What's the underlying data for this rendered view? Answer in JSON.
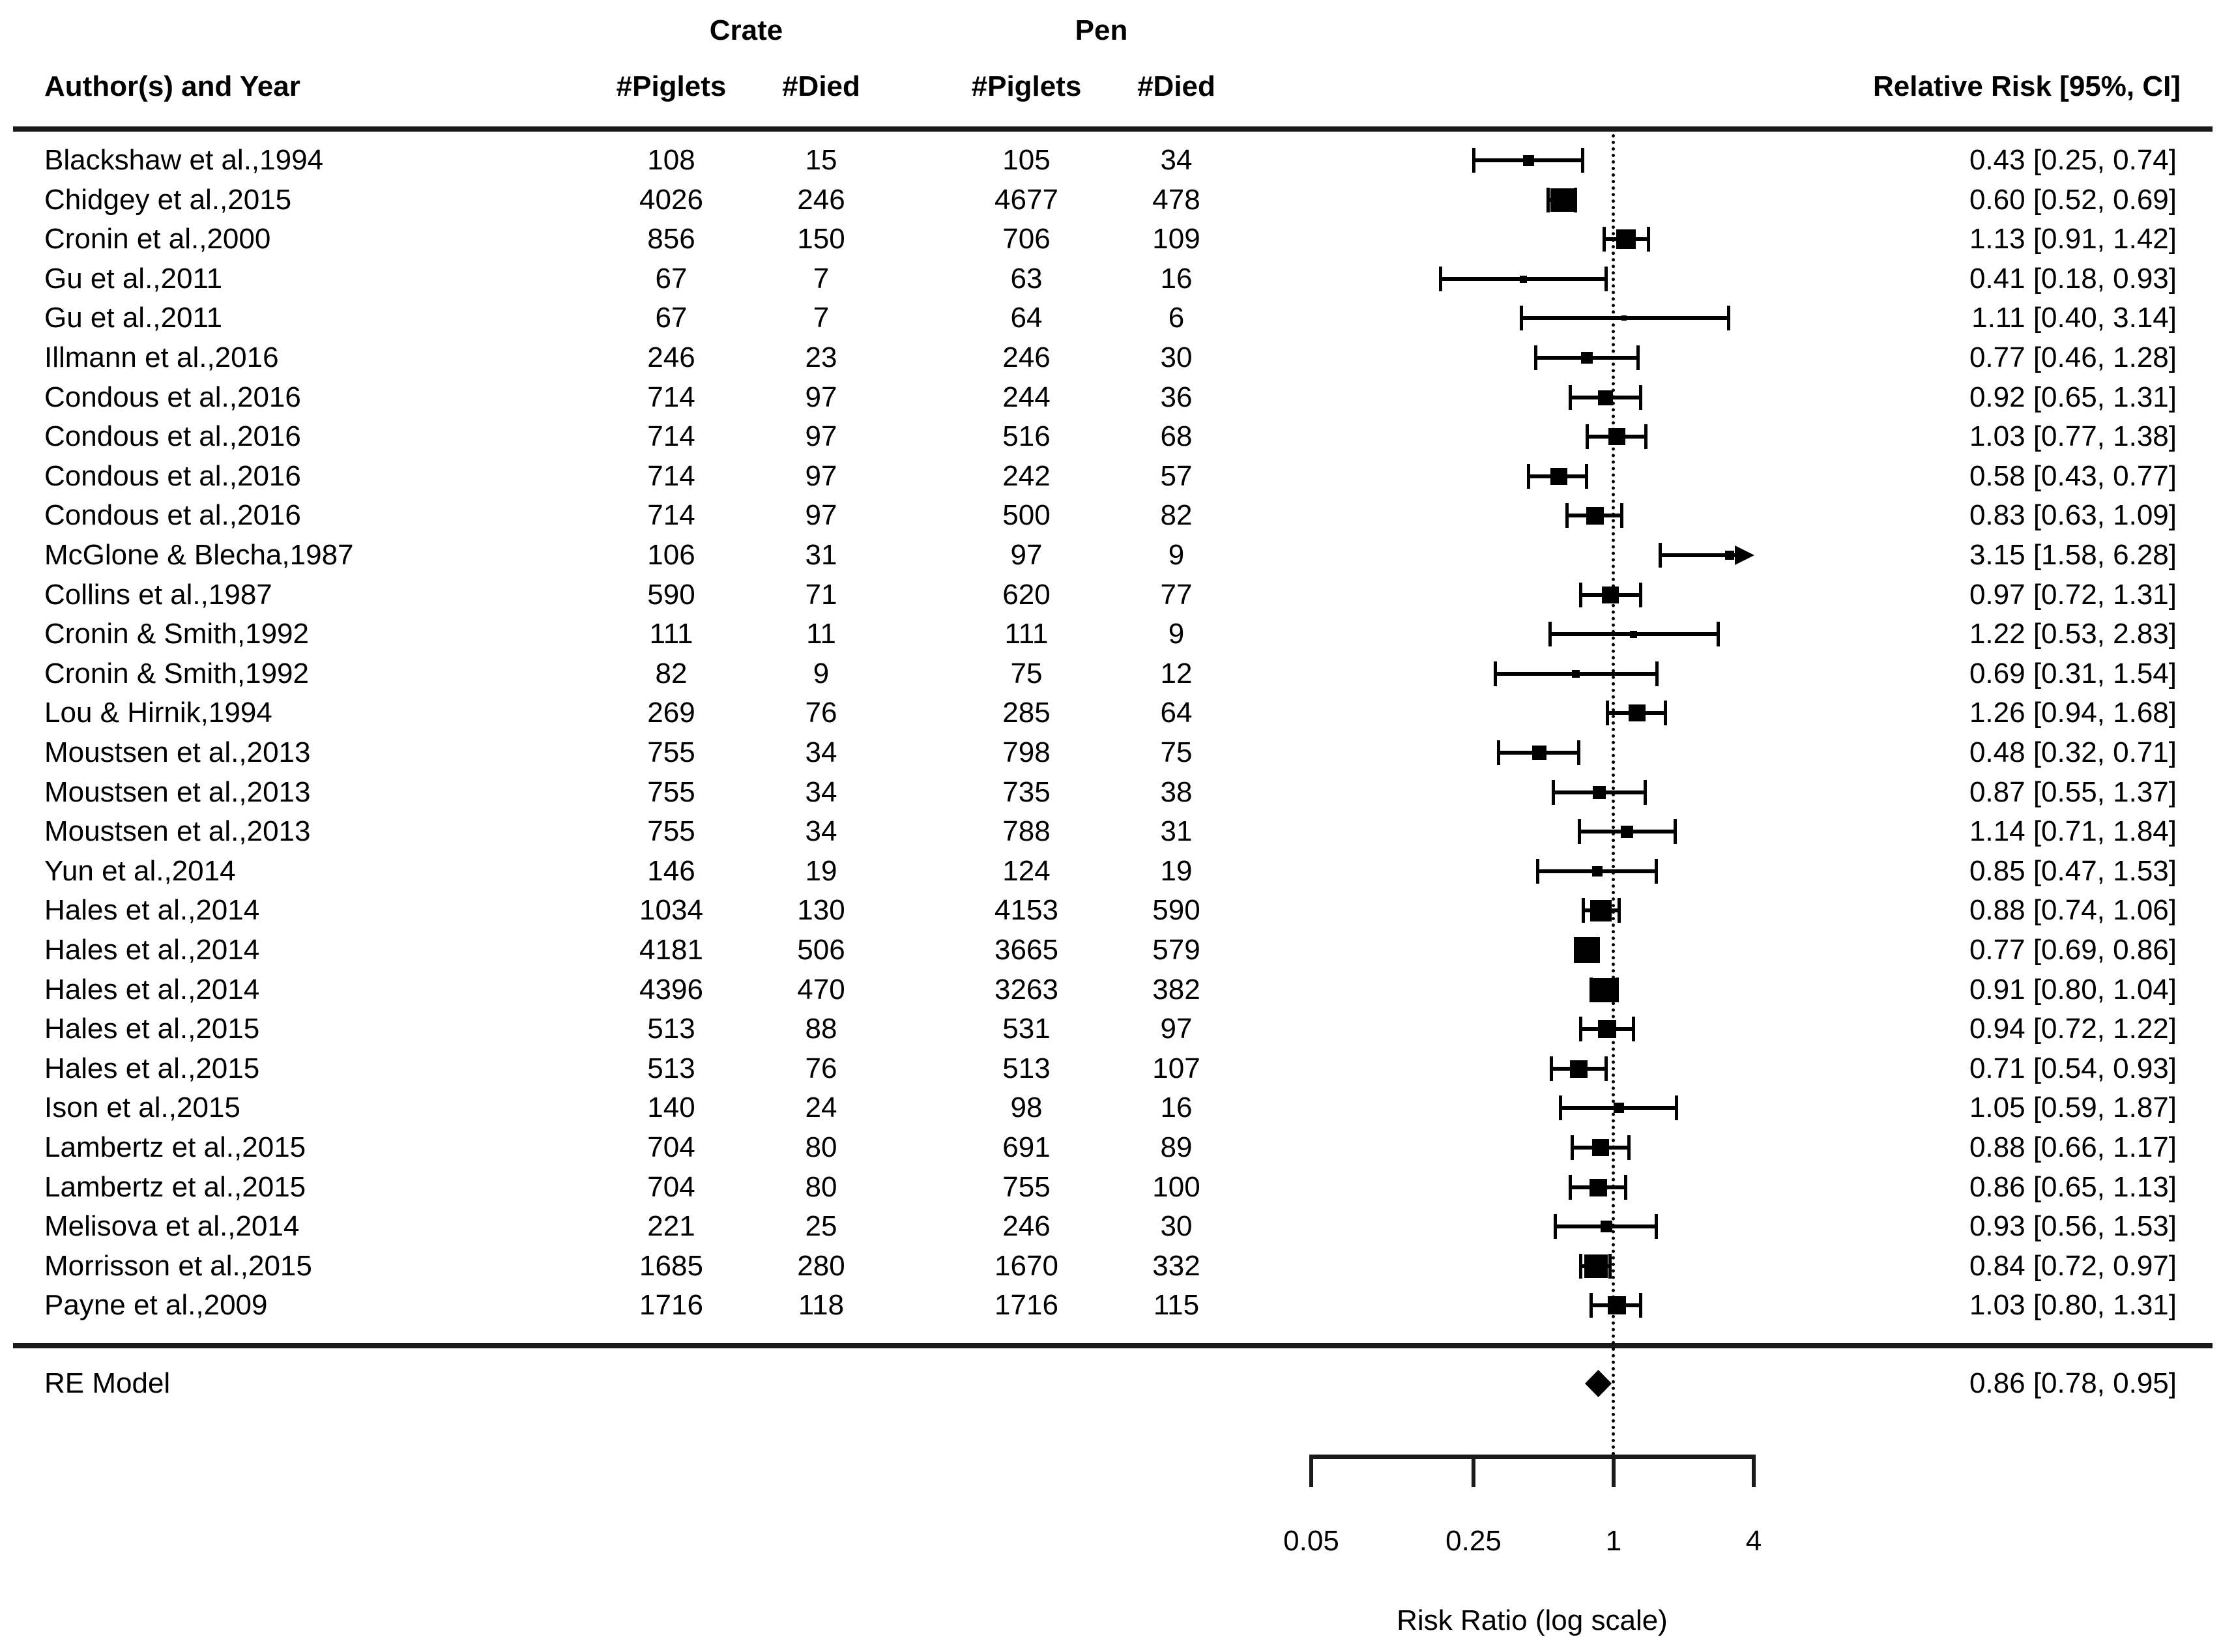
{
  "header": {
    "group_crate": "Crate",
    "group_pen": "Pen",
    "author_col": "Author(s) and Year",
    "piglets_col": "#Piglets",
    "died_col": "#Died",
    "rr_col": "Relative Risk [95%, CI]"
  },
  "summary_row": {
    "label": "RE Model",
    "rr_text": "0.86 [0.78, 0.95]"
  },
  "chart_data": {
    "type": "forest",
    "title": "",
    "xlabel": "Risk Ratio (log scale)",
    "x_scale": "log",
    "xlim": [
      0.05,
      4
    ],
    "ticks": [
      0.05,
      0.25,
      1,
      4
    ],
    "tick_labels": [
      "0.05",
      "0.25",
      "1",
      "4"
    ],
    "reference_line": 1,
    "legend_position": "none",
    "grid": false,
    "marker_color": "#000000",
    "line_color": "#000000",
    "columns": [
      "Author(s) and Year",
      "Crate #Piglets",
      "Crate #Died",
      "Pen #Piglets",
      "Pen #Died",
      "Relative Risk [95%, CI]"
    ],
    "studies": [
      {
        "author": "Blackshaw et al.,1994",
        "crate_piglets": 108,
        "crate_died": 15,
        "pen_piglets": 105,
        "pen_died": 34,
        "rr": 0.43,
        "ci_low": 0.25,
        "ci_high": 0.74,
        "rr_text": "0.43 [0.25, 0.74]"
      },
      {
        "author": "Chidgey et al.,2015",
        "crate_piglets": 4026,
        "crate_died": 246,
        "pen_piglets": 4677,
        "pen_died": 478,
        "rr": 0.6,
        "ci_low": 0.52,
        "ci_high": 0.69,
        "rr_text": "0.60 [0.52, 0.69]"
      },
      {
        "author": "Cronin et al.,2000",
        "crate_piglets": 856,
        "crate_died": 150,
        "pen_piglets": 706,
        "pen_died": 109,
        "rr": 1.13,
        "ci_low": 0.91,
        "ci_high": 1.42,
        "rr_text": "1.13 [0.91, 1.42]"
      },
      {
        "author": "Gu et al.,2011",
        "crate_piglets": 67,
        "crate_died": 7,
        "pen_piglets": 63,
        "pen_died": 16,
        "rr": 0.41,
        "ci_low": 0.18,
        "ci_high": 0.93,
        "rr_text": "0.41 [0.18, 0.93]"
      },
      {
        "author": "Gu et al.,2011",
        "crate_piglets": 67,
        "crate_died": 7,
        "pen_piglets": 64,
        "pen_died": 6,
        "rr": 1.11,
        "ci_low": 0.4,
        "ci_high": 3.14,
        "rr_text": "1.11 [0.40, 3.14]"
      },
      {
        "author": "Illmann et al.,2016",
        "crate_piglets": 246,
        "crate_died": 23,
        "pen_piglets": 246,
        "pen_died": 30,
        "rr": 0.77,
        "ci_low": 0.46,
        "ci_high": 1.28,
        "rr_text": "0.77 [0.46, 1.28]"
      },
      {
        "author": "Condous et al.,2016",
        "crate_piglets": 714,
        "crate_died": 97,
        "pen_piglets": 244,
        "pen_died": 36,
        "rr": 0.92,
        "ci_low": 0.65,
        "ci_high": 1.31,
        "rr_text": "0.92 [0.65, 1.31]"
      },
      {
        "author": "Condous et al.,2016",
        "crate_piglets": 714,
        "crate_died": 97,
        "pen_piglets": 516,
        "pen_died": 68,
        "rr": 1.03,
        "ci_low": 0.77,
        "ci_high": 1.38,
        "rr_text": "1.03 [0.77, 1.38]"
      },
      {
        "author": "Condous et al.,2016",
        "crate_piglets": 714,
        "crate_died": 97,
        "pen_piglets": 242,
        "pen_died": 57,
        "rr": 0.58,
        "ci_low": 0.43,
        "ci_high": 0.77,
        "rr_text": "0.58 [0.43, 0.77]"
      },
      {
        "author": "Condous et al.,2016",
        "crate_piglets": 714,
        "crate_died": 97,
        "pen_piglets": 500,
        "pen_died": 82,
        "rr": 0.83,
        "ci_low": 0.63,
        "ci_high": 1.09,
        "rr_text": "0.83 [0.63, 1.09]"
      },
      {
        "author": "McGlone & Blecha,1987",
        "crate_piglets": 106,
        "crate_died": 31,
        "pen_piglets": 97,
        "pen_died": 9,
        "rr": 3.15,
        "ci_low": 1.58,
        "ci_high": 6.28,
        "rr_text": "3.15 [1.58, 6.28]"
      },
      {
        "author": "Collins et al.,1987",
        "crate_piglets": 590,
        "crate_died": 71,
        "pen_piglets": 620,
        "pen_died": 77,
        "rr": 0.97,
        "ci_low": 0.72,
        "ci_high": 1.31,
        "rr_text": "0.97 [0.72, 1.31]"
      },
      {
        "author": "Cronin & Smith,1992",
        "crate_piglets": 111,
        "crate_died": 11,
        "pen_piglets": 111,
        "pen_died": 9,
        "rr": 1.22,
        "ci_low": 0.53,
        "ci_high": 2.83,
        "rr_text": "1.22 [0.53, 2.83]"
      },
      {
        "author": "Cronin & Smith,1992",
        "crate_piglets": 82,
        "crate_died": 9,
        "pen_piglets": 75,
        "pen_died": 12,
        "rr": 0.69,
        "ci_low": 0.31,
        "ci_high": 1.54,
        "rr_text": "0.69 [0.31, 1.54]"
      },
      {
        "author": "Lou & Hirnik,1994",
        "crate_piglets": 269,
        "crate_died": 76,
        "pen_piglets": 285,
        "pen_died": 64,
        "rr": 1.26,
        "ci_low": 0.94,
        "ci_high": 1.68,
        "rr_text": "1.26 [0.94, 1.68]"
      },
      {
        "author": "Moustsen et al.,2013",
        "crate_piglets": 755,
        "crate_died": 34,
        "pen_piglets": 798,
        "pen_died": 75,
        "rr": 0.48,
        "ci_low": 0.32,
        "ci_high": 0.71,
        "rr_text": "0.48 [0.32, 0.71]"
      },
      {
        "author": "Moustsen et al.,2013",
        "crate_piglets": 755,
        "crate_died": 34,
        "pen_piglets": 735,
        "pen_died": 38,
        "rr": 0.87,
        "ci_low": 0.55,
        "ci_high": 1.37,
        "rr_text": "0.87 [0.55, 1.37]"
      },
      {
        "author": "Moustsen et al.,2013",
        "crate_piglets": 755,
        "crate_died": 34,
        "pen_piglets": 788,
        "pen_died": 31,
        "rr": 1.14,
        "ci_low": 0.71,
        "ci_high": 1.84,
        "rr_text": "1.14 [0.71, 1.84]"
      },
      {
        "author": "Yun et al.,2014",
        "crate_piglets": 146,
        "crate_died": 19,
        "pen_piglets": 124,
        "pen_died": 19,
        "rr": 0.85,
        "ci_low": 0.47,
        "ci_high": 1.53,
        "rr_text": "0.85 [0.47, 1.53]"
      },
      {
        "author": "Hales et al.,2014",
        "crate_piglets": 1034,
        "crate_died": 130,
        "pen_piglets": 4153,
        "pen_died": 590,
        "rr": 0.88,
        "ci_low": 0.74,
        "ci_high": 1.06,
        "rr_text": "0.88 [0.74, 1.06]"
      },
      {
        "author": "Hales et al.,2014",
        "crate_piglets": 4181,
        "crate_died": 506,
        "pen_piglets": 3665,
        "pen_died": 579,
        "rr": 0.77,
        "ci_low": 0.69,
        "ci_high": 0.86,
        "rr_text": "0.77 [0.69, 0.86]"
      },
      {
        "author": "Hales et al.,2014",
        "crate_piglets": 4396,
        "crate_died": 470,
        "pen_piglets": 3263,
        "pen_died": 382,
        "rr": 0.91,
        "ci_low": 0.8,
        "ci_high": 1.04,
        "rr_text": "0.91 [0.80, 1.04]"
      },
      {
        "author": "Hales et al.,2015",
        "crate_piglets": 513,
        "crate_died": 88,
        "pen_piglets": 531,
        "pen_died": 97,
        "rr": 0.94,
        "ci_low": 0.72,
        "ci_high": 1.22,
        "rr_text": "0.94 [0.72, 1.22]"
      },
      {
        "author": "Hales et al.,2015",
        "crate_piglets": 513,
        "crate_died": 76,
        "pen_piglets": 513,
        "pen_died": 107,
        "rr": 0.71,
        "ci_low": 0.54,
        "ci_high": 0.93,
        "rr_text": "0.71 [0.54, 0.93]"
      },
      {
        "author": "Ison et al.,2015",
        "crate_piglets": 140,
        "crate_died": 24,
        "pen_piglets": 98,
        "pen_died": 16,
        "rr": 1.05,
        "ci_low": 0.59,
        "ci_high": 1.87,
        "rr_text": "1.05 [0.59, 1.87]"
      },
      {
        "author": "Lambertz et al.,2015",
        "crate_piglets": 704,
        "crate_died": 80,
        "pen_piglets": 691,
        "pen_died": 89,
        "rr": 0.88,
        "ci_low": 0.66,
        "ci_high": 1.17,
        "rr_text": "0.88 [0.66, 1.17]"
      },
      {
        "author": "Lambertz et al.,2015",
        "crate_piglets": 704,
        "crate_died": 80,
        "pen_piglets": 755,
        "pen_died": 100,
        "rr": 0.86,
        "ci_low": 0.65,
        "ci_high": 1.13,
        "rr_text": "0.86 [0.65, 1.13]"
      },
      {
        "author": "Melisova et al.,2014",
        "crate_piglets": 221,
        "crate_died": 25,
        "pen_piglets": 246,
        "pen_died": 30,
        "rr": 0.93,
        "ci_low": 0.56,
        "ci_high": 1.53,
        "rr_text": "0.93 [0.56, 1.53]"
      },
      {
        "author": "Morrisson et al.,2015",
        "crate_piglets": 1685,
        "crate_died": 280,
        "pen_piglets": 1670,
        "pen_died": 332,
        "rr": 0.84,
        "ci_low": 0.72,
        "ci_high": 0.97,
        "rr_text": "0.84 [0.72, 0.97]"
      },
      {
        "author": "Payne et al.,2009",
        "crate_piglets": 1716,
        "crate_died": 118,
        "pen_piglets": 1716,
        "pen_died": 115,
        "rr": 1.03,
        "ci_low": 0.8,
        "ci_high": 1.31,
        "rr_text": "1.03 [0.80, 1.31]"
      }
    ],
    "summary": {
      "label": "RE Model",
      "rr": 0.86,
      "ci_low": 0.78,
      "ci_high": 0.95,
      "rr_text": "0.86 [0.78, 0.95]"
    }
  }
}
